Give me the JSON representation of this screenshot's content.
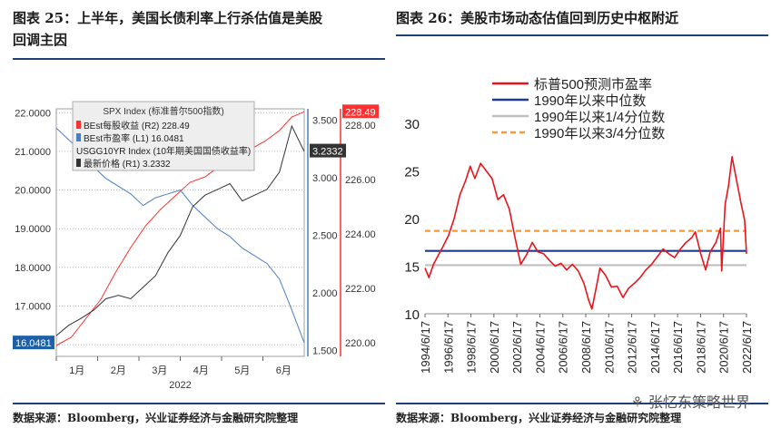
{
  "left": {
    "title_line1": "图表 25：上半年，美国长债利率上行杀估值是美股",
    "title_line2": "回调主因",
    "source": "数据来源：Bloomberg，兴业证券经济与金融研究院整理",
    "legend": {
      "header": "SPX Index (标准普尔500指数)",
      "eps_label": "BEst每股收益  (R2) 228.49",
      "pe_label": "BEst市盈率  (L1)       16.0481",
      "usgg_header": "USGG10YR Index (10年期美国国债收益率)",
      "yield_label": "最新价格  (R1)            3.2332"
    }
  },
  "right": {
    "title": "图表 26：美股市场动态估值回到历史中枢附近",
    "source": "数据来源：Bloomberg，兴业证券经济与金融研究院整理",
    "watermark": "张忆东策略世界"
  },
  "chart_data": [
    {
      "type": "line",
      "x_ticks": [
        "1月",
        "2月",
        "3月",
        "4月",
        "5月",
        "6月"
      ],
      "x_year_label": "2022",
      "left_axis": {
        "ticks": [
          "22.0000",
          "21.0000",
          "20.0000",
          "19.0000",
          "18.0000",
          "17.0000",
          "16.0000"
        ],
        "ylim": [
          15.7,
          22.1
        ]
      },
      "right1_axis": {
        "ticks": [
          "3.500",
          "3.000",
          "2.500",
          "2.000",
          "1.500"
        ],
        "ylim": [
          1.45,
          3.6
        ]
      },
      "right2_axis": {
        "ticks": [
          "228.00",
          "226.00",
          "224.00",
          "222.00",
          "220.00"
        ],
        "ylim": [
          219.5,
          228.6
        ]
      },
      "latest_labels": {
        "eps": "228.49",
        "yield": "3.2332",
        "pe": "16.0481"
      },
      "colors": {
        "eps": "#ff3030",
        "pe": "#4a7fc1",
        "yield": "#333333"
      },
      "series": [
        {
          "name": "BEst每股收益 (R2)",
          "axis": "right2",
          "x": [
            0,
            0.06,
            0.12,
            0.18,
            0.24,
            0.3,
            0.36,
            0.42,
            0.48,
            0.54,
            0.6,
            0.66,
            0.72,
            0.78,
            0.84,
            0.9,
            0.95,
            1.0
          ],
          "values": [
            219.9,
            220.2,
            220.9,
            221.6,
            222.6,
            223.5,
            224.3,
            224.9,
            225.4,
            225.9,
            226.1,
            226.5,
            226.7,
            227.1,
            227.4,
            227.8,
            228.3,
            228.49
          ]
        },
        {
          "name": "BEst市盈率 (L1)",
          "axis": "left",
          "x": [
            0,
            0.05,
            0.1,
            0.15,
            0.2,
            0.25,
            0.3,
            0.35,
            0.4,
            0.45,
            0.5,
            0.55,
            0.6,
            0.65,
            0.7,
            0.75,
            0.8,
            0.85,
            0.9,
            0.95,
            1.0
          ],
          "values": [
            21.6,
            21.3,
            21.0,
            20.6,
            20.3,
            20.1,
            19.9,
            19.6,
            19.8,
            19.9,
            20.0,
            19.6,
            19.3,
            19.0,
            18.8,
            18.5,
            18.3,
            18.1,
            17.7,
            16.9,
            16.05
          ]
        },
        {
          "name": "最新价格 (R1)",
          "axis": "right1",
          "x": [
            0,
            0.05,
            0.1,
            0.15,
            0.2,
            0.25,
            0.3,
            0.35,
            0.4,
            0.45,
            0.5,
            0.55,
            0.6,
            0.65,
            0.7,
            0.75,
            0.8,
            0.85,
            0.9,
            0.95,
            1.0
          ],
          "values": [
            1.63,
            1.72,
            1.78,
            1.85,
            1.95,
            1.98,
            1.95,
            2.05,
            2.15,
            2.35,
            2.5,
            2.75,
            2.85,
            2.9,
            2.95,
            2.8,
            2.85,
            2.9,
            3.05,
            3.45,
            3.23
          ]
        }
      ]
    },
    {
      "type": "line",
      "legend": [
        "标普500预测市盈率",
        "1990年以来中位数",
        "1990年以来1/4分位数",
        "1990年以来3/4分位数"
      ],
      "x_ticks": [
        "1994/6/17",
        "1996/6/17",
        "1998/6/17",
        "2000/6/17",
        "2002/6/17",
        "2004/6/17",
        "2006/6/17",
        "2008/6/17",
        "2010/6/17",
        "2012/6/17",
        "2014/6/17",
        "2016/6/17",
        "2018/6/17",
        "2020/6/17",
        "2022/6/17"
      ],
      "y_ticks": [
        "30",
        "25",
        "20",
        "15",
        "10"
      ],
      "ylim": [
        10,
        30
      ],
      "xlim": [
        1994.46,
        2022.46
      ],
      "median": 16.6,
      "q1": 15.1,
      "q3": 18.7,
      "colors": {
        "pe": "#e8141c",
        "median": "#1f3a93",
        "q1": "#bfbfbf",
        "q3": "#f59a36"
      },
      "series": [
        {
          "name": "标普500预测市盈率",
          "x": [
            1994.46,
            1994.8,
            1995.2,
            1995.6,
            1996.0,
            1996.5,
            1997.0,
            1997.5,
            1998.0,
            1998.4,
            1998.8,
            1999.3,
            1999.8,
            2000.3,
            2000.8,
            2001.3,
            2001.8,
            2002.3,
            2002.8,
            2003.3,
            2003.8,
            2004.3,
            2004.8,
            2005.3,
            2005.8,
            2006.3,
            2006.8,
            2007.3,
            2007.8,
            2008.3,
            2008.7,
            2009.0,
            2009.3,
            2009.7,
            2010.2,
            2010.7,
            2011.2,
            2011.7,
            2012.2,
            2012.7,
            2013.2,
            2013.7,
            2014.2,
            2014.7,
            2015.2,
            2015.7,
            2016.2,
            2016.7,
            2017.2,
            2017.7,
            2018.0,
            2018.5,
            2018.9,
            2019.3,
            2019.8,
            2020.2,
            2020.3,
            2020.6,
            2020.9,
            2021.2,
            2021.6,
            2022.0,
            2022.3,
            2022.46
          ],
          "values": [
            14.8,
            13.8,
            15.2,
            16.1,
            17.0,
            18.2,
            20.0,
            22.5,
            24.0,
            25.5,
            24.2,
            25.8,
            25.0,
            24.2,
            22.0,
            22.5,
            21.0,
            18.0,
            15.2,
            16.2,
            17.5,
            16.5,
            16.3,
            15.6,
            15.0,
            15.3,
            14.6,
            15.2,
            14.5,
            13.2,
            11.5,
            10.5,
            12.3,
            14.8,
            14.0,
            12.8,
            12.9,
            11.7,
            12.7,
            13.2,
            13.8,
            14.6,
            15.2,
            16.0,
            16.8,
            16.3,
            15.9,
            16.8,
            17.5,
            18.0,
            18.6,
            16.2,
            14.6,
            16.5,
            17.5,
            19.0,
            14.5,
            21.5,
            23.5,
            26.5,
            24.0,
            21.5,
            19.8,
            16.3
          ]
        }
      ]
    }
  ]
}
